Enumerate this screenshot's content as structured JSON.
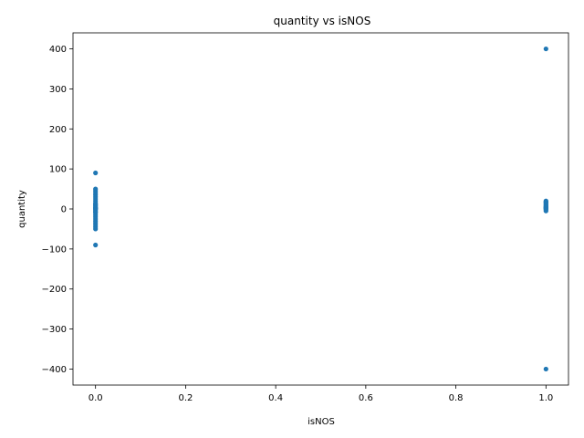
{
  "chart_data": {
    "type": "scatter",
    "title": "quantity vs isNOS",
    "xlabel": "isNOS",
    "ylabel": "quantity",
    "xlim": [
      -0.05,
      1.05
    ],
    "ylim": [
      -440,
      440
    ],
    "xticks": [
      0.0,
      0.2,
      0.4,
      0.6,
      0.8,
      1.0
    ],
    "xtick_labels": [
      "0.0",
      "0.2",
      "0.4",
      "0.6",
      "0.8",
      "1.0"
    ],
    "yticks": [
      400,
      300,
      200,
      100,
      0,
      -100,
      -200,
      -300,
      -400
    ],
    "ytick_labels": [
      "400",
      "300",
      "200",
      "100",
      "0",
      "−100",
      "−200",
      "−300",
      "−400"
    ],
    "grid": false,
    "marker_color": "#1f77b4",
    "series": [
      {
        "x": [
          0,
          0,
          0,
          0,
          0,
          0,
          0,
          0,
          0,
          0,
          0,
          0,
          0,
          0,
          0,
          0,
          0,
          0,
          0,
          0,
          0,
          0,
          0,
          0,
          0,
          0,
          0,
          0,
          0,
          0,
          1,
          1,
          1,
          1,
          1,
          1,
          1,
          1,
          1,
          1,
          1,
          1,
          1,
          1,
          1,
          1,
          1,
          1
        ],
        "y": [
          90,
          50,
          45,
          40,
          35,
          30,
          25,
          20,
          15,
          12,
          10,
          8,
          5,
          3,
          2,
          1,
          0,
          -2,
          -5,
          -8,
          -10,
          -15,
          -20,
          -25,
          -30,
          -35,
          -40,
          -45,
          -50,
          -90,
          400,
          20,
          18,
          16,
          15,
          12,
          10,
          8,
          6,
          5,
          4,
          3,
          2,
          1,
          0,
          -2,
          -5,
          -400
        ]
      }
    ]
  }
}
